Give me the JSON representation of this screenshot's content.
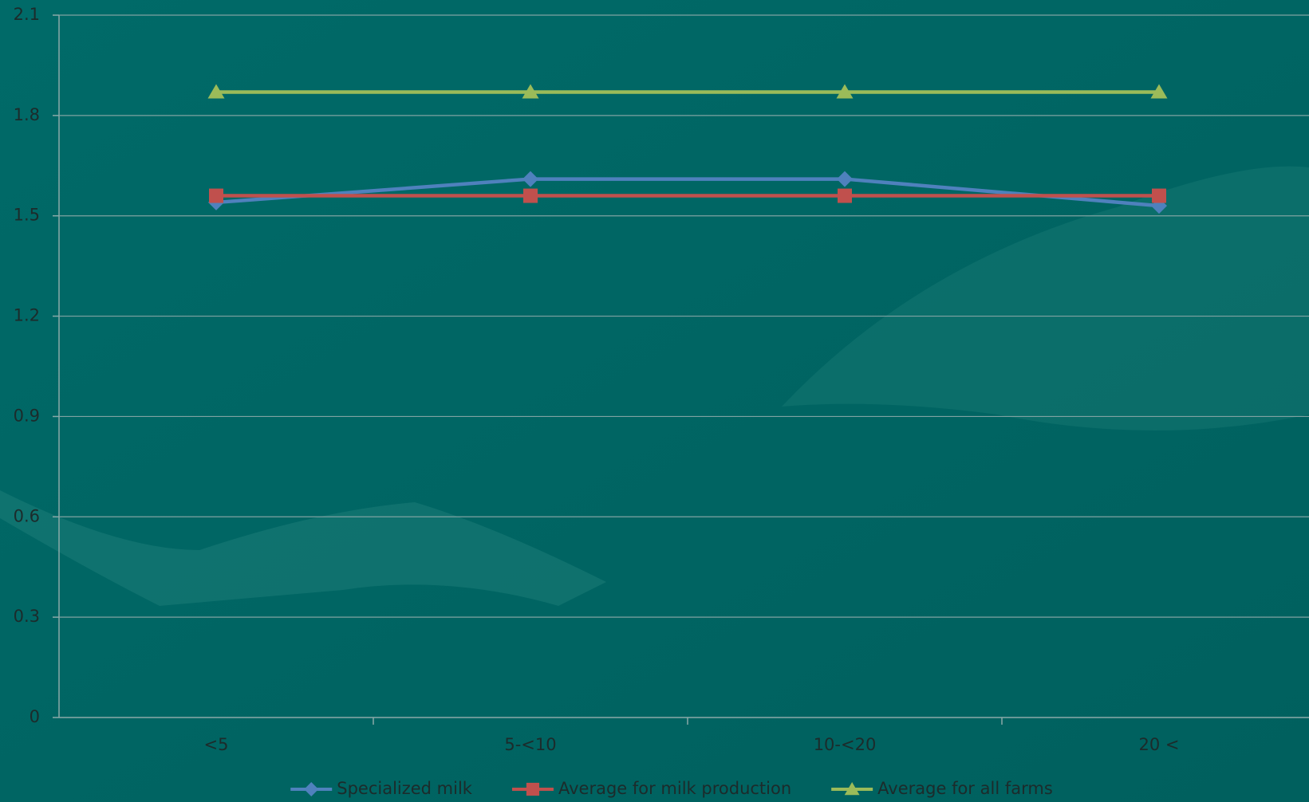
{
  "chart_data": {
    "type": "line",
    "categories": [
      "<5",
      "5-<10",
      "10-<20",
      "20 <"
    ],
    "series": [
      {
        "name": "Specialized milk",
        "color": "#4f81bd",
        "marker": "diamond",
        "values": [
          1.54,
          1.61,
          1.61,
          1.53
        ]
      },
      {
        "name": "Average for milk production",
        "color": "#c0504d",
        "marker": "square",
        "values": [
          1.56,
          1.56,
          1.56,
          1.56
        ]
      },
      {
        "name": "Average for all farms",
        "color": "#9bbb59",
        "marker": "triangle",
        "values": [
          1.87,
          1.87,
          1.87,
          1.87
        ]
      }
    ],
    "ylim": [
      0,
      2.1
    ],
    "yticks": [
      0,
      0.3,
      0.6,
      0.9,
      1.2,
      1.5,
      1.8,
      2.1
    ],
    "grid": true,
    "legend": "bottom"
  }
}
